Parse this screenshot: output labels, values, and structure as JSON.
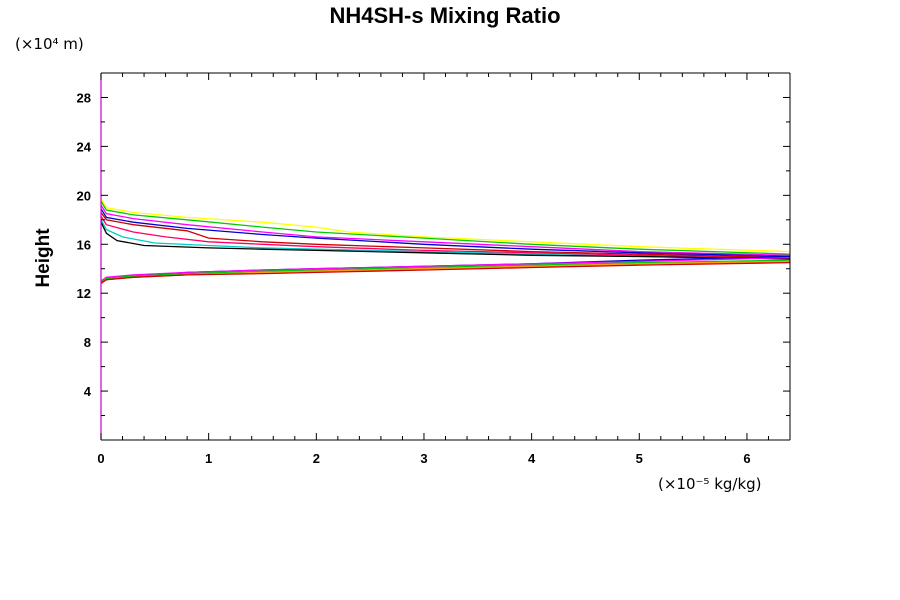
{
  "chart_data": {
    "type": "line",
    "title": "NH4SH-s Mixing Ratio",
    "ylabel": "Height",
    "y_unit": "(×10⁴ m)",
    "x_unit": "(×10⁻⁵ kg/kg)",
    "xlim": [
      0,
      6.4
    ],
    "ylim": [
      0,
      30
    ],
    "x_ticks": [
      "0",
      "1",
      "2",
      "3",
      "4",
      "5",
      "6"
    ],
    "y_ticks": [
      "4",
      "8",
      "12",
      "16",
      "20",
      "24",
      "28"
    ],
    "grid": false,
    "series": [
      {
        "color": "#ffff00",
        "x": [
          0,
          0.05,
          0.3,
          0.8,
          1.5,
          2.0,
          2.3,
          3.0,
          4.0,
          5.0,
          6.4
        ],
        "y": [
          19.7,
          19.0,
          18.6,
          18.2,
          17.8,
          17.4,
          17.0,
          16.6,
          16.2,
          15.8,
          15.4
        ]
      },
      {
        "color": "#00cc00",
        "x": [
          0,
          0.05,
          0.3,
          0.8,
          1.5,
          2.0,
          3.0,
          4.0,
          5.0,
          6.4
        ],
        "y": [
          19.5,
          18.8,
          18.4,
          18.0,
          17.4,
          17.0,
          16.5,
          16.0,
          15.6,
          15.2
        ]
      },
      {
        "color": "#ff00ff",
        "x": [
          0,
          0.05,
          0.3,
          0.8,
          1.5,
          2.0,
          3.0,
          4.0,
          5.0,
          6.4
        ],
        "y": [
          19.2,
          18.5,
          18.1,
          17.6,
          17.0,
          16.6,
          16.2,
          15.8,
          15.4,
          15.1
        ]
      },
      {
        "color": "#0000cc",
        "x": [
          0,
          0.05,
          0.3,
          0.8,
          1.5,
          2.0,
          3.0,
          4.0,
          5.0,
          6.4
        ],
        "y": [
          18.9,
          18.2,
          17.8,
          17.3,
          16.8,
          16.5,
          16.0,
          15.6,
          15.3,
          15.0
        ]
      },
      {
        "color": "#cc0000",
        "x": [
          0,
          0.05,
          0.3,
          0.8,
          1.0,
          1.5,
          2.0,
          3.0,
          4.0,
          5.0,
          6.4
        ],
        "y": [
          18.6,
          18.0,
          17.6,
          17.1,
          16.5,
          16.2,
          16.0,
          15.7,
          15.4,
          15.2,
          14.9
        ]
      },
      {
        "color": "#ff0066",
        "x": [
          0,
          0.05,
          0.3,
          0.6,
          1.0,
          1.5,
          2.0,
          3.0,
          4.0,
          5.0,
          6.4
        ],
        "y": [
          18.3,
          17.6,
          17.0,
          16.6,
          16.2,
          16.0,
          15.8,
          15.5,
          15.3,
          15.1,
          14.8
        ]
      },
      {
        "color": "#00cccc",
        "x": [
          0,
          0.05,
          0.2,
          0.5,
          1.0,
          1.5,
          2.0,
          3.0,
          4.0,
          5.0,
          6.4
        ],
        "y": [
          18.0,
          17.2,
          16.6,
          16.1,
          15.9,
          15.7,
          15.6,
          15.4,
          15.2,
          15.0,
          14.8
        ]
      },
      {
        "color": "#000000",
        "x": [
          0,
          0.05,
          0.15,
          0.4,
          1.0,
          1.5,
          2.0,
          3.0,
          4.0,
          5.0,
          6.4
        ],
        "y": [
          17.8,
          16.9,
          16.3,
          15.9,
          15.7,
          15.6,
          15.5,
          15.3,
          15.1,
          15.0,
          14.8
        ]
      },
      {
        "color": "#0000cc",
        "x": [
          0,
          0.05,
          0.3,
          0.8,
          1.5,
          2.0,
          3.0,
          4.0,
          5.0,
          6.4
        ],
        "y": [
          12.9,
          13.2,
          13.4,
          13.7,
          13.9,
          14.0,
          14.2,
          14.4,
          14.7,
          15.0
        ]
      },
      {
        "color": "#ff00ff",
        "x": [
          0,
          0.05,
          0.3,
          0.8,
          1.5,
          2.0,
          3.0,
          4.0,
          5.0,
          6.4
        ],
        "y": [
          13.0,
          13.3,
          13.5,
          13.7,
          13.9,
          14.0,
          14.2,
          14.4,
          14.6,
          14.9
        ]
      },
      {
        "color": "#00cc00",
        "x": [
          0,
          0.05,
          0.3,
          0.8,
          1.5,
          2.0,
          3.0,
          4.0,
          5.0,
          6.4
        ],
        "y": [
          12.9,
          13.2,
          13.4,
          13.6,
          13.8,
          13.9,
          14.1,
          14.3,
          14.5,
          14.7
        ]
      },
      {
        "color": "#ff9900",
        "x": [
          0,
          0.05,
          0.3,
          0.8,
          1.5,
          2.0,
          3.0,
          4.0,
          5.0,
          6.4
        ],
        "y": [
          12.8,
          13.1,
          13.3,
          13.5,
          13.7,
          13.8,
          14.0,
          14.2,
          14.4,
          14.6
        ]
      },
      {
        "color": "#cc0000",
        "x": [
          0,
          0.05,
          0.3,
          0.8,
          1.5,
          2.0,
          3.0,
          4.0,
          5.0,
          6.4
        ],
        "y": [
          12.8,
          13.1,
          13.3,
          13.5,
          13.6,
          13.7,
          13.9,
          14.1,
          14.3,
          14.5
        ]
      }
    ]
  }
}
